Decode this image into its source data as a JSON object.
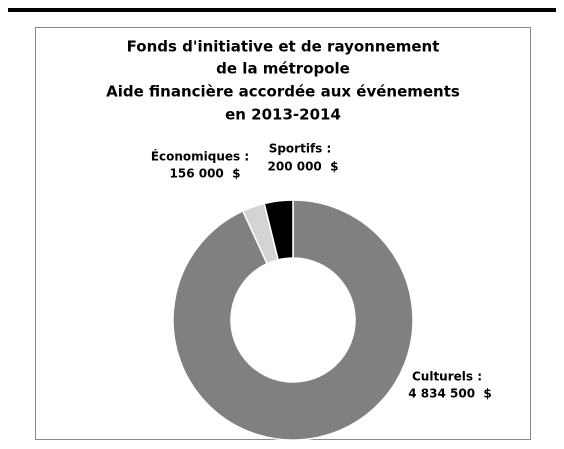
{
  "chart_data": {
    "type": "donut",
    "title": [
      "Fonds d'initiative et de rayonnement",
      "de la métropole",
      "Aide financière accordée aux événements",
      "en 2013-2014"
    ],
    "categories": [
      "Culturels :",
      "Économiques :",
      "Sportifs :"
    ],
    "values": [
      4834500,
      156000,
      200000
    ],
    "value_labels": [
      "4 834 500  $",
      "156 000  $",
      "200 000  $"
    ],
    "colors": [
      "#808080",
      "#d4d4d4",
      "#000000"
    ]
  }
}
